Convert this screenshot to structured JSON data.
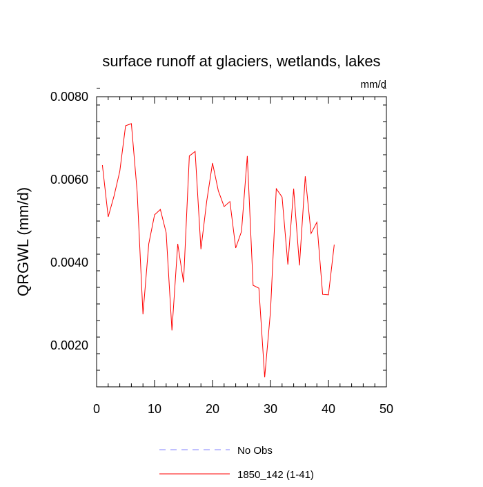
{
  "chart_data": {
    "type": "line",
    "title": "surface runoff at glaciers, wetlands, lakes",
    "units_label": "mm/d",
    "xlabel": "",
    "ylabel": "QRGWL  (mm/d)",
    "xlim": [
      0,
      50
    ],
    "ylim": [
      0.001,
      0.008
    ],
    "x_ticks": [
      0,
      10,
      20,
      30,
      40,
      50
    ],
    "x_tick_labels": [
      "0",
      "10",
      "20",
      "30",
      "40",
      "50"
    ],
    "y_ticks": [
      0.002,
      0.004,
      0.006,
      0.008
    ],
    "y_tick_labels": [
      "0.0020",
      "0.0040",
      "0.0060",
      "0.0080"
    ],
    "grid": false,
    "legend_position": "bottom",
    "series": [
      {
        "name": "No Obs",
        "color": "#8080ff",
        "dash": "dashed",
        "x": [],
        "values": []
      },
      {
        "name": "1850_142 (1-41)",
        "color": "#ff0000",
        "dash": "solid",
        "x": [
          1,
          2,
          3,
          4,
          5,
          6,
          7,
          8,
          9,
          10,
          11,
          12,
          13,
          14,
          15,
          16,
          17,
          18,
          19,
          20,
          21,
          22,
          23,
          24,
          25,
          26,
          27,
          28,
          29,
          30,
          31,
          32,
          33,
          34,
          35,
          36,
          37,
          38,
          39,
          40,
          41
        ],
        "values": [
          0.00635,
          0.0051,
          0.0056,
          0.0062,
          0.0073,
          0.00735,
          0.0057,
          0.00275,
          0.00445,
          0.00515,
          0.00528,
          0.00472,
          0.00236,
          0.00445,
          0.00352,
          0.00657,
          0.00668,
          0.00432,
          0.00548,
          0.0064,
          0.00573,
          0.00535,
          0.00547,
          0.00435,
          0.00475,
          0.00657,
          0.00345,
          0.00338,
          0.00123,
          0.00282,
          0.00578,
          0.00558,
          0.00395,
          0.00578,
          0.00393,
          0.00608,
          0.0047,
          0.00497,
          0.00323,
          0.00322,
          0.00443
        ]
      }
    ]
  }
}
